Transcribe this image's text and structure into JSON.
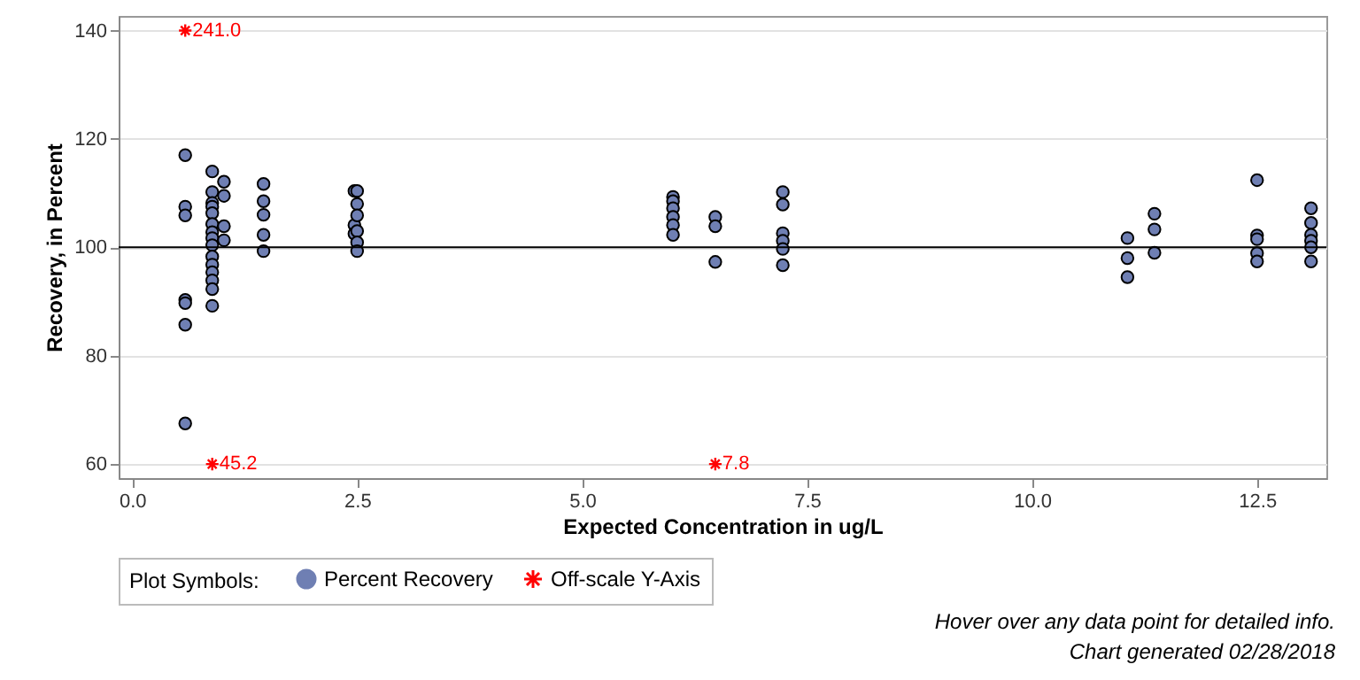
{
  "chart_data": {
    "type": "scatter",
    "xlabel": "Expected Concentration in ug/L",
    "ylabel": "Recovery, in Percent",
    "legend_title": "Plot Symbols:",
    "annotations": [
      "Hover over any data point for detailed info.",
      "Chart generated 02/28/2018",
      {
        "text": "241.0",
        "x": 0.59,
        "y": 140
      },
      {
        "text": "45.2",
        "x": 0.89,
        "y": 60
      },
      {
        "text": "7.8",
        "x": 6.48,
        "y": 60
      }
    ],
    "xlim": [
      -0.15,
      13.27
    ],
    "xticks": [
      {
        "value": 0,
        "label": "0.0"
      },
      {
        "value": 2.5,
        "label": "2.5"
      },
      {
        "value": 5,
        "label": "5.0"
      },
      {
        "value": 7.5,
        "label": "7.5"
      },
      {
        "value": 10,
        "label": "10.0"
      },
      {
        "value": 12.5,
        "label": "12.5"
      }
    ],
    "ylim": [
      57.4,
      142.7
    ],
    "yticks": [
      60,
      80,
      100,
      120,
      140
    ],
    "grid": "y",
    "legend": "bottom",
    "ref_lines": [
      {
        "axis": "y",
        "value": 100,
        "color": "#000000"
      }
    ],
    "series": [
      {
        "name": "Percent Recovery",
        "color": "#6f7fb3",
        "marker": "circle",
        "x": [
          0.59,
          0.59,
          0.59,
          0.59,
          0.59,
          0.59,
          0.59,
          0.89,
          0.89,
          0.89,
          0.89,
          0.89,
          0.89,
          0.89,
          0.89,
          0.89,
          0.89,
          0.89,
          0.89,
          0.89,
          0.89,
          0.89,
          1.02,
          1.02,
          1.02,
          1.02,
          1.46,
          1.46,
          1.46,
          1.46,
          1.46,
          2.47,
          2.47,
          2.47,
          2.5,
          2.5,
          2.5,
          2.5,
          2.5,
          2.5,
          6.01,
          6.01,
          6.01,
          6.01,
          6.01,
          6.01,
          6.48,
          6.48,
          6.48,
          7.23,
          7.23,
          7.23,
          7.23,
          7.23,
          7.23,
          11.06,
          11.06,
          11.06,
          11.36,
          11.36,
          11.36,
          12.5,
          12.5,
          12.5,
          12.5,
          12.5,
          13.1,
          13.1,
          13.1,
          13.1,
          13.1,
          13.1
        ],
        "values": [
          117.0,
          107.5,
          105.9,
          90.3,
          89.7,
          85.7,
          67.5,
          114.0,
          110.2,
          108.2,
          107.5,
          106.3,
          104.3,
          102.8,
          101.7,
          100.4,
          98.3,
          96.8,
          95.4,
          93.9,
          92.3,
          89.2,
          112.1,
          109.5,
          103.9,
          101.3,
          111.7,
          108.5,
          106.0,
          102.3,
          99.3,
          110.4,
          104.1,
          102.5,
          110.4,
          108.0,
          105.9,
          103.0,
          100.9,
          99.3,
          109.3,
          108.5,
          107.2,
          105.6,
          104.1,
          102.3,
          105.6,
          103.9,
          97.3,
          110.2,
          107.9,
          102.6,
          101.2,
          99.7,
          96.7,
          101.7,
          98.0,
          94.5,
          106.2,
          103.3,
          99.0,
          112.4,
          102.2,
          101.5,
          98.9,
          97.4,
          107.2,
          104.5,
          102.3,
          101.2,
          100.0,
          97.4
        ]
      },
      {
        "name": "Off-scale Y-Axis",
        "color": "#ff0000",
        "marker": "cross",
        "x": [
          0.59,
          0.89,
          6.48
        ],
        "values": [
          140,
          60,
          60
        ]
      }
    ]
  }
}
